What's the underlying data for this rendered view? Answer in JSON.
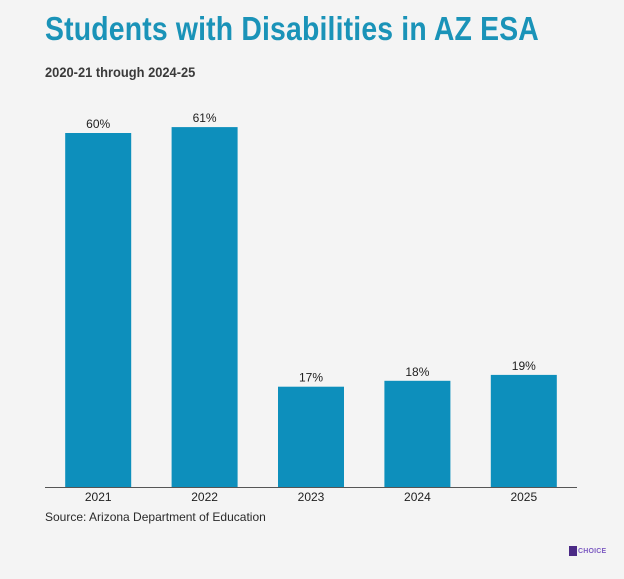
{
  "header": {
    "title": "Students with Disabilities in AZ ESA",
    "subtitle": "2020-21 through 2024-25"
  },
  "footer": {
    "source": "Source: Arizona Department of Education",
    "logo_text": "CHOICE"
  },
  "colors": {
    "bar": "#0d8fbc",
    "title": "#1a93b8",
    "background": "#f4f4f4"
  },
  "chart_data": {
    "type": "bar",
    "title": "Students with Disabilities in AZ ESA",
    "subtitle": "2020-21 through 2024-25",
    "categories": [
      "2021",
      "2022",
      "2023",
      "2024",
      "2025"
    ],
    "values": [
      60,
      61,
      17,
      18,
      19
    ],
    "value_labels": [
      "60%",
      "61%",
      "17%",
      "18%",
      "19%"
    ],
    "xlabel": "",
    "ylabel": "",
    "ylim": [
      0,
      60
    ],
    "grid": false,
    "legend": "none"
  }
}
